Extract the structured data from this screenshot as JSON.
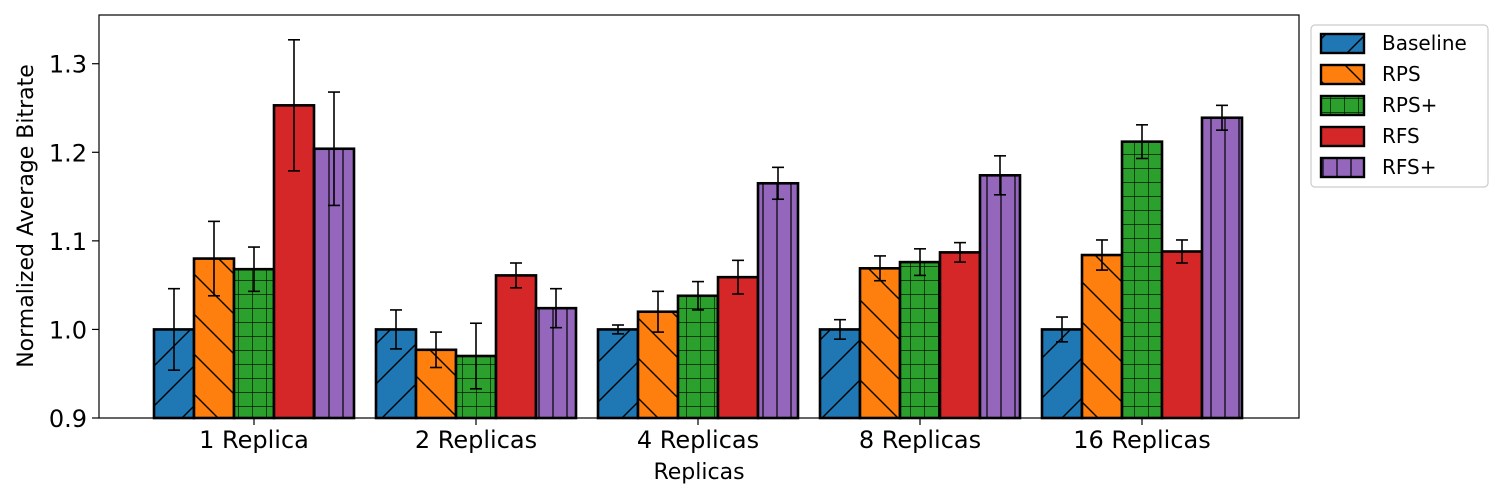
{
  "chart_data": {
    "type": "bar",
    "xlabel": "Replicas",
    "ylabel": "Normalized Average Bitrate",
    "ylim": [
      0.9,
      1.355
    ],
    "yticks": [
      "0.9",
      "1.0",
      "1.1",
      "1.2",
      "1.3"
    ],
    "categories": [
      "1 Replica",
      "2 Replicas",
      "4 Replicas",
      "8 Replicas",
      "16 Replicas"
    ],
    "grid": false,
    "legend_position": "outside-top-right",
    "series": [
      {
        "name": "Baseline",
        "color": "#1f77b4",
        "hatch": "forward-diagonal",
        "values": [
          1.0,
          1.0,
          1.0,
          1.0,
          1.0
        ],
        "errors": [
          0.046,
          0.022,
          0.005,
          0.011,
          0.014
        ]
      },
      {
        "name": "RPS",
        "color": "#ff7f0e",
        "hatch": "back-diagonal",
        "values": [
          1.08,
          0.977,
          1.02,
          1.069,
          1.084
        ],
        "errors": [
          0.042,
          0.02,
          0.023,
          0.014,
          0.017
        ]
      },
      {
        "name": "RPS+",
        "color": "#2ca02c",
        "hatch": "grid",
        "values": [
          1.068,
          0.97,
          1.038,
          1.076,
          1.212
        ],
        "errors": [
          0.025,
          0.037,
          0.016,
          0.015,
          0.019
        ]
      },
      {
        "name": "RFS",
        "color": "#d62728",
        "hatch": "none",
        "values": [
          1.253,
          1.061,
          1.059,
          1.087,
          1.088
        ],
        "errors": [
          0.074,
          0.014,
          0.019,
          0.011,
          0.013
        ]
      },
      {
        "name": "RFS+",
        "color": "#9467bd",
        "hatch": "vertical",
        "values": [
          1.204,
          1.024,
          1.165,
          1.174,
          1.239
        ],
        "errors": [
          0.064,
          0.022,
          0.018,
          0.022,
          0.014
        ]
      }
    ]
  }
}
